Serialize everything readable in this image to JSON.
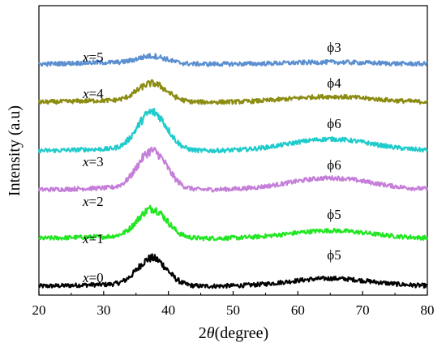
{
  "chart_data": {
    "type": "line",
    "xlabel_prefix": "2",
    "xlabel_theta": "θ",
    "xlabel_suffix": "(degree)",
    "ylabel": "Intensity (a.u)",
    "xlim": [
      20,
      80
    ],
    "x_ticks": [
      "20",
      "30",
      "40",
      "50",
      "60",
      "70",
      "80"
    ],
    "y_ticks_labeled": false,
    "grid": false,
    "series": [
      {
        "name": "x=0",
        "var": "x",
        "value": "=0",
        "peak_label": "ϕ5",
        "color": "#000000",
        "baseline": 0,
        "peak_height": 0.9,
        "broad_height": 0.25,
        "end_level": 0.42
      },
      {
        "name": "x=1",
        "var": "x",
        "value": "=1",
        "peak_label": "ϕ5",
        "color": "#22e622",
        "baseline": 1,
        "peak_height": 0.95,
        "broad_height": 0.25,
        "end_level": 0.42
      },
      {
        "name": "x=2",
        "var": "x",
        "value": "=2",
        "peak_label": "ϕ6",
        "color": "#c57ed9",
        "baseline": 2,
        "peak_height": 1.25,
        "broad_height": 0.38,
        "end_level": 0.4
      },
      {
        "name": "x=3",
        "var": "x",
        "value": "=3",
        "peak_label": "ϕ6",
        "color": "#1fcbcb",
        "baseline": 3,
        "peak_height": 1.25,
        "broad_height": 0.38,
        "end_level": 0.42
      },
      {
        "name": "x=4",
        "var": "x",
        "value": "=4",
        "peak_label": "ϕ4",
        "color": "#8c8c12",
        "baseline": 4,
        "peak_height": 0.6,
        "broad_height": 0.18,
        "end_level": 0.35
      },
      {
        "name": "x=5",
        "var": "x",
        "value": "=5",
        "peak_label": "ϕ3",
        "color": "#5b8fd0",
        "baseline": 5,
        "peak_height": 0.25,
        "broad_height": 0.06,
        "end_level": 0.05
      }
    ]
  }
}
